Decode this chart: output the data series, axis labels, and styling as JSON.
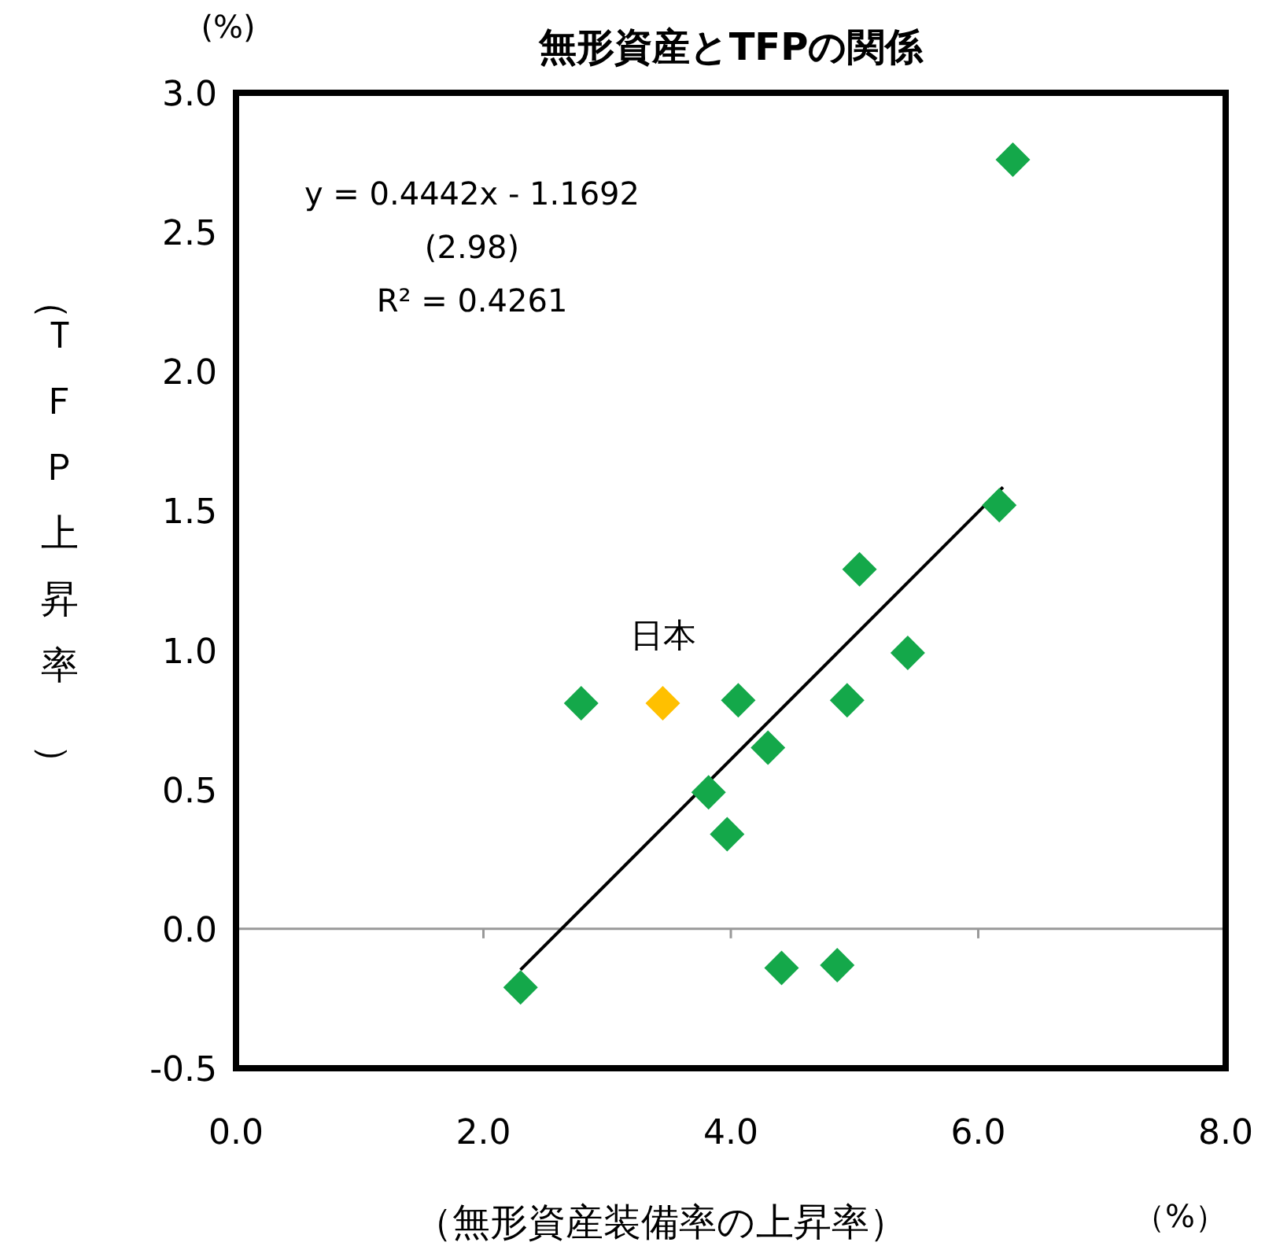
{
  "chart_data": {
    "type": "scatter",
    "title": "無形資産とTFPの関係",
    "xlabel": "（無形資産装備率の上昇率）",
    "ylabel": "（ＴＦＰ上昇率）",
    "xlim": [
      0,
      8
    ],
    "xticks": [
      {
        "value": 0,
        "label": "0.0"
      },
      {
        "value": 2,
        "label": "2.0"
      },
      {
        "value": 4,
        "label": "4.0"
      },
      {
        "value": 6,
        "label": "6.0"
      },
      {
        "value": 8,
        "label": "8.0"
      }
    ],
    "ylim": [
      -0.5,
      3
    ],
    "yticks": [
      {
        "value": -0.5,
        "label": "-0.5"
      },
      {
        "value": 0,
        "label": "0.0"
      },
      {
        "value": 0.5,
        "label": "0.5"
      },
      {
        "value": 1,
        "label": "1.0"
      },
      {
        "value": 1.5,
        "label": "1.5"
      },
      {
        "value": 2,
        "label": "2.0"
      },
      {
        "value": 2.5,
        "label": "2.5"
      },
      {
        "value": 3,
        "label": "3.0"
      }
    ],
    "marker": "diamond",
    "grid": false,
    "ref_lines": [
      {
        "axis": "y",
        "value": 0,
        "label": null,
        "color": "#999999"
      }
    ],
    "series": [
      {
        "x": [
          2.3,
          2.79,
          3.45,
          3.82,
          3.97,
          4.06,
          4.3,
          4.41,
          4.86,
          4.94,
          5.04,
          5.43,
          6.17,
          6.28
        ],
        "values": [
          -0.21,
          0.81,
          0.81,
          0.49,
          0.34,
          0.82,
          0.65,
          -0.14,
          -0.13,
          0.82,
          1.29,
          0.99,
          1.52,
          2.76
        ],
        "colors": [
          "#14a84a",
          "#14a84a",
          "#ffc000",
          "#14a84a",
          "#14a84a",
          "#14a84a",
          "#14a84a",
          "#14a84a",
          "#14a84a",
          "#14a84a",
          "#14a84a",
          "#14a84a",
          "#14a84a",
          "#14a84a"
        ]
      },
      {
        "type": "line",
        "x": [
          2.3,
          6.2
        ],
        "values": [
          -0.147,
          1.585
        ],
        "color": "#000000",
        "marker": "none"
      }
    ],
    "annotations": [
      "(%)",
      "（%）",
      "y = 0.4442x - 1.1692",
      "(2.98)",
      "R² = 0.4261",
      {
        "text": "日本",
        "x": 3.45,
        "y": 0.81
      }
    ]
  }
}
